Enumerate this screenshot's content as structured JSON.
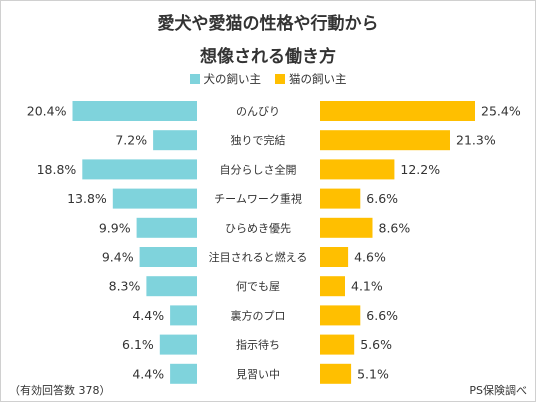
{
  "title_line1": "愛犬や愛猫の性格や行動から",
  "title_line2": "想像される働き方",
  "footnote": "（有効回答数 378）",
  "source": "PS保険調べ",
  "colors": {
    "dog": "#7fd3dc",
    "cat": "#ffbf00"
  },
  "chart_data": {
    "type": "bar",
    "orientation": "horizontal-butterfly",
    "value_unit": "%",
    "categories": [
      "のんびり",
      "独りで完結",
      "自分らしさ全開",
      "チームワーク重視",
      "ひらめき優先",
      "注目されると燃える",
      "何でも屋",
      "裏方のプロ",
      "指示待ち",
      "見習い中"
    ],
    "series": [
      {
        "name": "犬の飼い主",
        "values": [
          20.4,
          7.2,
          18.8,
          13.8,
          9.9,
          9.4,
          8.3,
          4.4,
          6.1,
          4.4
        ]
      },
      {
        "name": "猫の飼い主",
        "values": [
          25.4,
          21.3,
          12.2,
          6.6,
          8.6,
          4.6,
          4.1,
          6.6,
          5.6,
          5.1
        ]
      }
    ],
    "legend_position": "top-center",
    "grid": false
  }
}
